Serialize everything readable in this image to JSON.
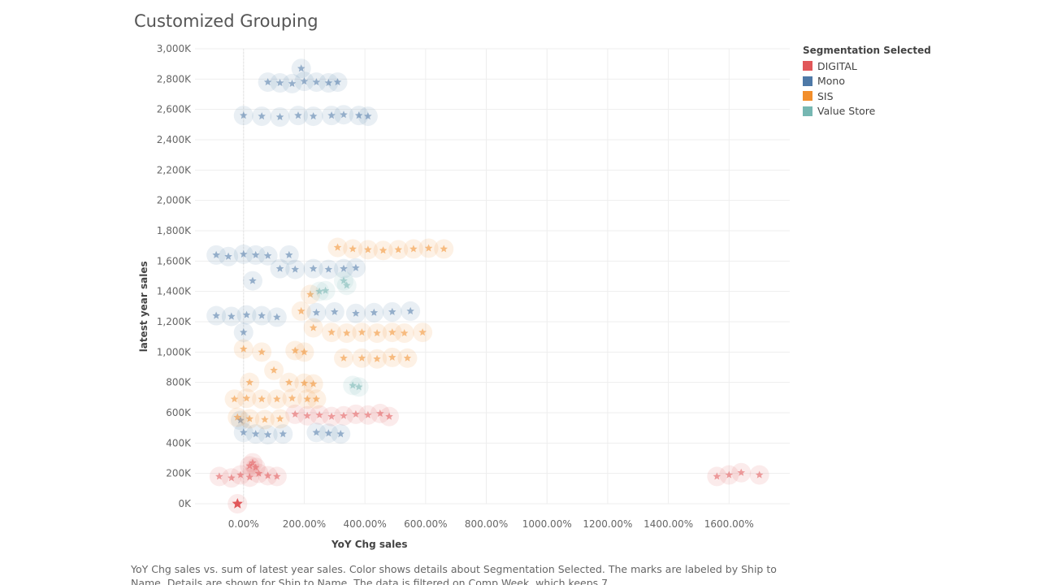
{
  "page": {
    "title": "Customized Grouping",
    "caption": "YoY Chg sales vs. sum of latest year sales.  Color shows details about Segmentation Selected.  The marks are labeled by Ship to Name.  Details are shown for Ship to Name. The data is filtered on Comp Week, which keeps 7"
  },
  "legend": {
    "title": "Segmentation Selected",
    "items": [
      {
        "label": "DIGITAL",
        "color": "#e15759"
      },
      {
        "label": "Mono",
        "color": "#4e79a7"
      },
      {
        "label": "SIS",
        "color": "#f28e2b"
      },
      {
        "label": "Value Store",
        "color": "#76b7b2"
      }
    ]
  },
  "chart_data": {
    "type": "scatter",
    "title": "Customized Grouping",
    "xlabel": "YoY Chg sales",
    "ylabel": "latest year sales",
    "xlim": [
      -160,
      1800
    ],
    "ylim": [
      0,
      3000
    ],
    "x_ticks": [
      "0.00%",
      "200.00%",
      "400.00%",
      "600.00%",
      "800.00%",
      "1000.00%",
      "1200.00%",
      "1400.00%",
      "1600.00%"
    ],
    "x_tick_values": [
      0,
      200,
      400,
      600,
      800,
      1000,
      1200,
      1400,
      1600
    ],
    "y_ticks": [
      "0K",
      "200K",
      "400K",
      "600K",
      "800K",
      "1,000K",
      "1,200K",
      "1,400K",
      "1,600K",
      "1,800K",
      "2,000K",
      "2,200K",
      "2,400K",
      "2,600K",
      "2,800K",
      "3,000K"
    ],
    "y_tick_values": [
      0,
      200,
      400,
      600,
      800,
      1000,
      1200,
      1400,
      1600,
      1800,
      2000,
      2200,
      2400,
      2600,
      2800,
      3000
    ],
    "grid": true,
    "legend_position": "top-right",
    "series": [
      {
        "name": "DIGITAL",
        "color": "#e15759",
        "points": [
          [
            -20,
            0
          ],
          [
            -80,
            180
          ],
          [
            -40,
            170
          ],
          [
            -10,
            190
          ],
          [
            20,
            175
          ],
          [
            50,
            200
          ],
          [
            80,
            185
          ],
          [
            110,
            180
          ],
          [
            30,
            270
          ],
          [
            40,
            240
          ],
          [
            20,
            250
          ],
          [
            170,
            590
          ],
          [
            210,
            580
          ],
          [
            250,
            585
          ],
          [
            290,
            575
          ],
          [
            330,
            580
          ],
          [
            370,
            590
          ],
          [
            410,
            585
          ],
          [
            450,
            595
          ],
          [
            480,
            575
          ],
          [
            1560,
            180
          ],
          [
            1600,
            190
          ],
          [
            1640,
            205
          ],
          [
            1700,
            190
          ]
        ]
      },
      {
        "name": "Mono",
        "color": "#4e79a7",
        "points": [
          [
            190,
            2870
          ],
          [
            80,
            2780
          ],
          [
            120,
            2775
          ],
          [
            160,
            2770
          ],
          [
            200,
            2785
          ],
          [
            240,
            2780
          ],
          [
            280,
            2775
          ],
          [
            310,
            2780
          ],
          [
            0,
            2560
          ],
          [
            60,
            2555
          ],
          [
            120,
            2550
          ],
          [
            180,
            2560
          ],
          [
            230,
            2555
          ],
          [
            290,
            2560
          ],
          [
            330,
            2565
          ],
          [
            380,
            2560
          ],
          [
            410,
            2555
          ],
          [
            -90,
            1640
          ],
          [
            -50,
            1630
          ],
          [
            0,
            1645
          ],
          [
            40,
            1640
          ],
          [
            80,
            1635
          ],
          [
            150,
            1640
          ],
          [
            120,
            1550
          ],
          [
            170,
            1545
          ],
          [
            230,
            1550
          ],
          [
            280,
            1545
          ],
          [
            330,
            1550
          ],
          [
            370,
            1555
          ],
          [
            30,
            1470
          ],
          [
            -90,
            1240
          ],
          [
            -40,
            1235
          ],
          [
            10,
            1245
          ],
          [
            60,
            1240
          ],
          [
            110,
            1230
          ],
          [
            0,
            1130
          ],
          [
            240,
            1260
          ],
          [
            300,
            1265
          ],
          [
            370,
            1255
          ],
          [
            430,
            1260
          ],
          [
            490,
            1265
          ],
          [
            550,
            1270
          ],
          [
            -10,
            550
          ],
          [
            0,
            470
          ],
          [
            40,
            460
          ],
          [
            80,
            455
          ],
          [
            130,
            460
          ],
          [
            240,
            470
          ],
          [
            280,
            465
          ],
          [
            320,
            460
          ]
        ]
      },
      {
        "name": "SIS",
        "color": "#f28e2b",
        "points": [
          [
            310,
            1690
          ],
          [
            360,
            1680
          ],
          [
            410,
            1675
          ],
          [
            460,
            1670
          ],
          [
            510,
            1675
          ],
          [
            560,
            1680
          ],
          [
            610,
            1685
          ],
          [
            660,
            1680
          ],
          [
            220,
            1380
          ],
          [
            190,
            1270
          ],
          [
            230,
            1160
          ],
          [
            290,
            1130
          ],
          [
            340,
            1125
          ],
          [
            390,
            1130
          ],
          [
            440,
            1125
          ],
          [
            490,
            1130
          ],
          [
            530,
            1125
          ],
          [
            590,
            1130
          ],
          [
            0,
            1020
          ],
          [
            60,
            1000
          ],
          [
            170,
            1010
          ],
          [
            200,
            1000
          ],
          [
            330,
            960
          ],
          [
            390,
            960
          ],
          [
            440,
            955
          ],
          [
            490,
            965
          ],
          [
            540,
            960
          ],
          [
            100,
            880
          ],
          [
            150,
            800
          ],
          [
            200,
            795
          ],
          [
            230,
            790
          ],
          [
            20,
            800
          ],
          [
            -30,
            690
          ],
          [
            10,
            695
          ],
          [
            60,
            690
          ],
          [
            110,
            690
          ],
          [
            160,
            695
          ],
          [
            210,
            690
          ],
          [
            240,
            690
          ],
          [
            -20,
            570
          ],
          [
            20,
            560
          ],
          [
            70,
            555
          ],
          [
            120,
            560
          ]
        ]
      },
      {
        "name": "Value Store",
        "color": "#76b7b2",
        "points": [
          [
            250,
            1400
          ],
          [
            270,
            1405
          ],
          [
            330,
            1470
          ],
          [
            340,
            1440
          ],
          [
            360,
            780
          ],
          [
            380,
            770
          ]
        ]
      }
    ]
  }
}
